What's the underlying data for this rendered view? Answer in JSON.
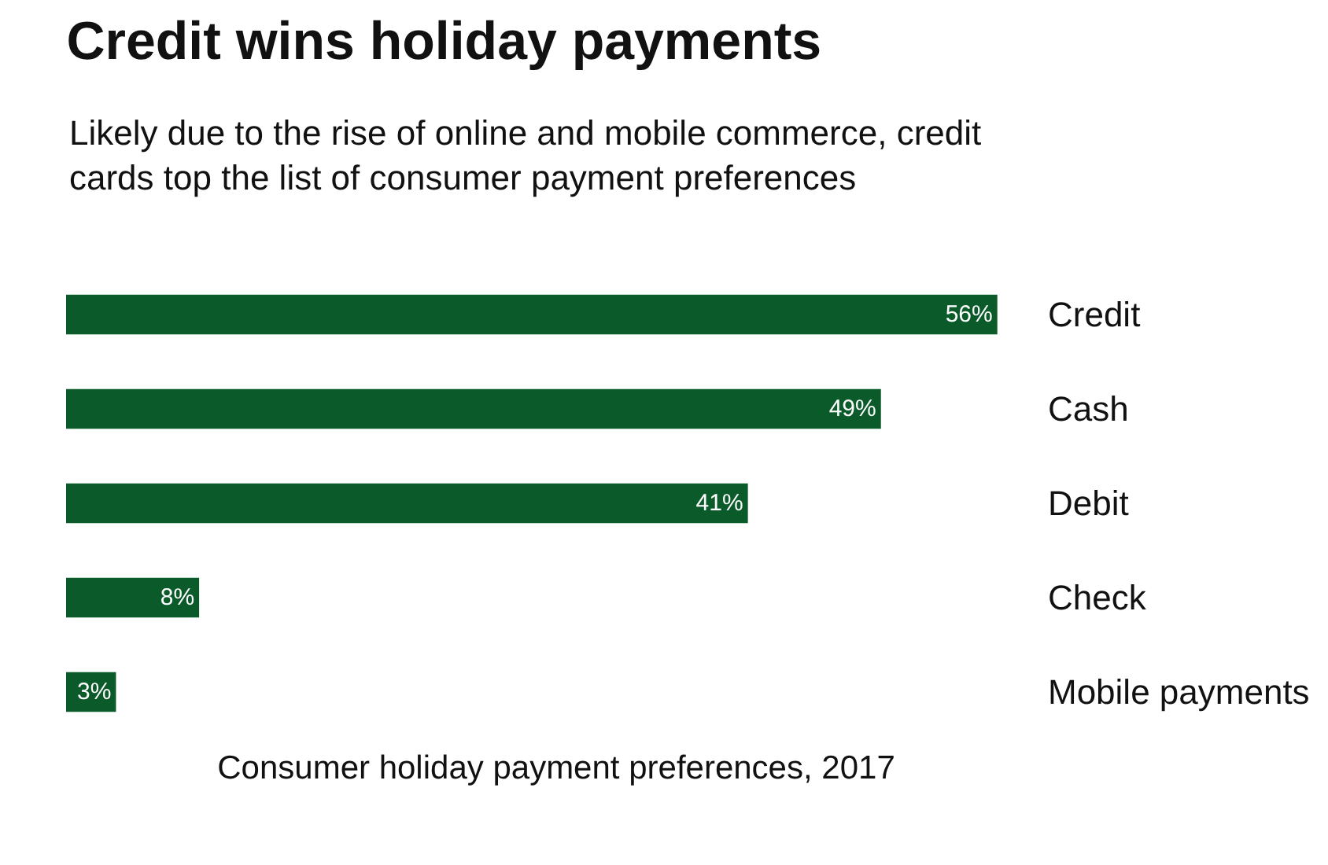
{
  "chart_data": {
    "type": "bar",
    "orientation": "horizontal",
    "title": "Credit wins holiday payments",
    "subtitle": "Likely due to the rise of online and mobile commerce, credit cards top the list of consumer payment preferences",
    "xlabel": "Consumer holiday payment preferences, 2017",
    "categories": [
      "Credit",
      "Cash",
      "Debit",
      "Check",
      "Mobile payments"
    ],
    "values": [
      56,
      49,
      41,
      8,
      3
    ],
    "value_labels": [
      "56%",
      "49%",
      "41%",
      "8%",
      "3%"
    ],
    "color": "#0b5a2a",
    "tick_labels": "y",
    "legend": false
  }
}
